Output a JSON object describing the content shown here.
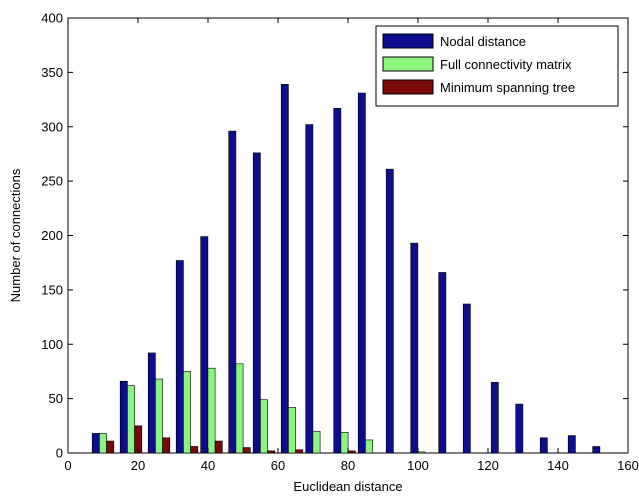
{
  "chart_data": {
    "type": "bar",
    "xlabel": "Euclidean distance",
    "ylabel": "Number of connections",
    "xlim": [
      0,
      160
    ],
    "ylim": [
      0,
      400
    ],
    "x_ticks": [
      0,
      20,
      40,
      60,
      80,
      100,
      120,
      140,
      160
    ],
    "y_ticks": [
      0,
      50,
      100,
      150,
      200,
      250,
      300,
      350,
      400
    ],
    "x_tick_labels": [
      "0",
      "20",
      "40",
      "60",
      "80",
      "100",
      "120",
      "140",
      "160"
    ],
    "y_tick_labels": [
      "0",
      "50",
      "100",
      "150",
      "200",
      "250",
      "300",
      "350",
      "400"
    ],
    "grid": false,
    "legend_position": "top-right",
    "bin_centers": [
      10,
      18,
      26,
      34,
      41,
      49,
      56,
      64,
      71,
      79,
      86,
      94,
      101,
      109,
      116,
      124,
      131,
      138,
      146,
      153
    ],
    "series": [
      {
        "name": "Nodal distance",
        "color": "#0d0d8e",
        "values": [
          18,
          66,
          92,
          177,
          199,
          296,
          276,
          339,
          302,
          317,
          331,
          261,
          193,
          166,
          137,
          65,
          45,
          14,
          16,
          6
        ]
      },
      {
        "name": "Full connectivity matrix",
        "color": "#8bf57f",
        "values": [
          18,
          62,
          68,
          75,
          78,
          82,
          49,
          42,
          20,
          19,
          12,
          0,
          1,
          0,
          0,
          0,
          0,
          0,
          0,
          0
        ]
      },
      {
        "name": "Minimum spanning tree",
        "color": "#7a0a0a",
        "values": [
          11,
          25,
          14,
          6,
          11,
          5,
          2,
          3,
          0,
          2,
          0,
          0,
          0,
          0,
          0,
          0,
          0,
          0,
          0,
          0
        ]
      }
    ]
  }
}
